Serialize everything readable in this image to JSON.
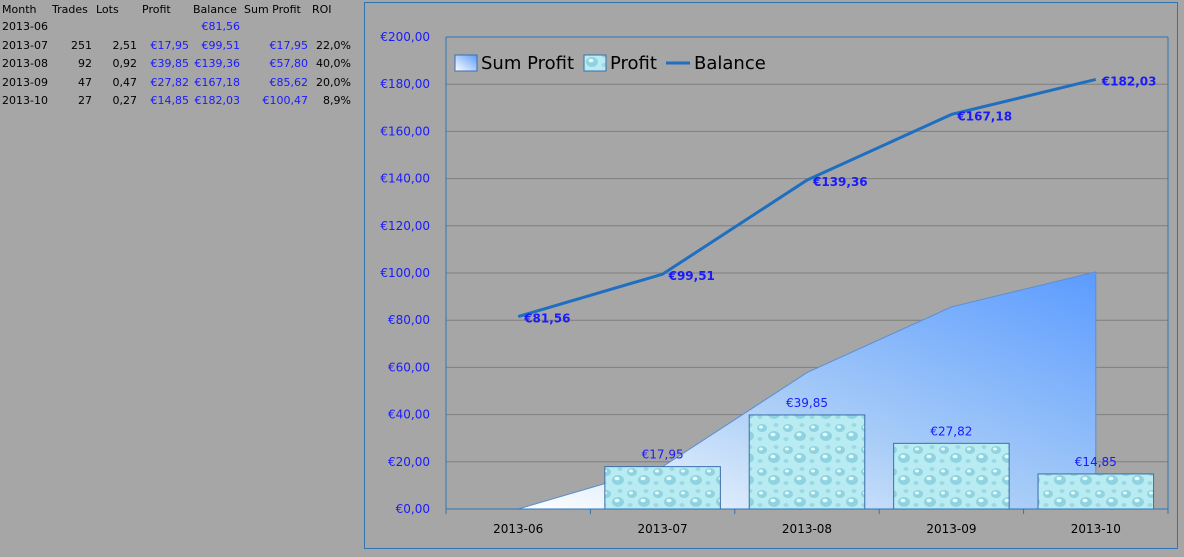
{
  "table": {
    "headers": [
      "Month",
      "Trades",
      "Lots",
      "Profit",
      "Balance",
      "Sum Profit",
      "ROI"
    ],
    "rows": [
      [
        "2013-06",
        "",
        "",
        "",
        "€81,56",
        "",
        ""
      ],
      [
        "2013-07",
        "251",
        "2,51",
        "€17,95",
        "€99,51",
        "€17,95",
        "22,0%"
      ],
      [
        "2013-08",
        "92",
        "0,92",
        "€39,85",
        "€139,36",
        "€57,80",
        "40,0%"
      ],
      [
        "2013-09",
        "47",
        "0,47",
        "€27,82",
        "€167,18",
        "€85,62",
        "20,0%"
      ],
      [
        "2013-10",
        "27",
        "0,27",
        "€14,85",
        "€182,03",
        "€100,47",
        "8,9%"
      ]
    ]
  },
  "chart_data": {
    "type": "bar",
    "categories": [
      "2013-06",
      "2013-07",
      "2013-08",
      "2013-09",
      "2013-10"
    ],
    "series": [
      {
        "name": "Sum Profit",
        "kind": "area",
        "values": [
          0,
          17.95,
          57.8,
          85.62,
          100.47
        ],
        "color": "#5b9bff"
      },
      {
        "name": "Profit",
        "kind": "bar",
        "values": [
          null,
          17.95,
          39.85,
          27.82,
          14.85
        ],
        "labels": [
          "",
          "€17,95",
          "€39,85",
          "€27,82",
          "€14,85"
        ],
        "color": "#a8e4ee"
      },
      {
        "name": "Balance",
        "kind": "line",
        "values": [
          81.56,
          99.51,
          139.36,
          167.18,
          182.03
        ],
        "labels": [
          "€81,56",
          "€99,51",
          "€139,36",
          "€167,18",
          "€182,03"
        ],
        "color": "#1f6fc0"
      }
    ],
    "ylim": [
      0,
      200
    ],
    "ytick_values": [
      0,
      20,
      40,
      60,
      80,
      100,
      120,
      140,
      160,
      180,
      200
    ],
    "yticks": [
      "€0,00",
      "€20,00",
      "€40,00",
      "€60,00",
      "€80,00",
      "€100,00",
      "€120,00",
      "€140,00",
      "€160,00",
      "€180,00",
      "€200,00"
    ],
    "grid": true,
    "legend_position": "top-left",
    "label_color": "#1a1aff"
  }
}
